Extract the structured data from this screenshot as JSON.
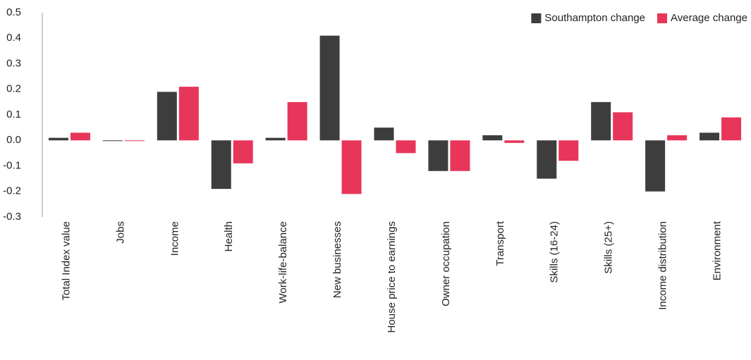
{
  "chart_data": {
    "type": "bar",
    "categories": [
      "Total Index value",
      "Jobs",
      "Income",
      "Health",
      "Work-life-balance",
      "New businesses",
      "House price to earnings",
      "Owner occupation",
      "Transport",
      "Skills (16-24)",
      "Skills (25+)",
      "Income distribution",
      "Environment"
    ],
    "series": [
      {
        "name": "Southampton change",
        "color": "#3d3d3d",
        "values": [
          0.01,
          0.0,
          0.19,
          -0.19,
          0.01,
          0.41,
          0.05,
          -0.12,
          0.02,
          -0.15,
          0.15,
          -0.2,
          0.03
        ]
      },
      {
        "name": "Average change",
        "color": "#e8365a",
        "values": [
          0.03,
          0.0,
          0.21,
          -0.09,
          0.15,
          -0.21,
          -0.05,
          -0.12,
          -0.01,
          -0.08,
          0.11,
          0.02,
          0.09
        ]
      }
    ],
    "ylim": [
      -0.3,
      0.5
    ],
    "yticks": [
      -0.3,
      -0.2,
      -0.1,
      {
        "value": 0,
        "label": "0.0"
      },
      0.1,
      0.2,
      0.3,
      0.4,
      0.5
    ],
    "grid": false,
    "legend": "top-right"
  }
}
